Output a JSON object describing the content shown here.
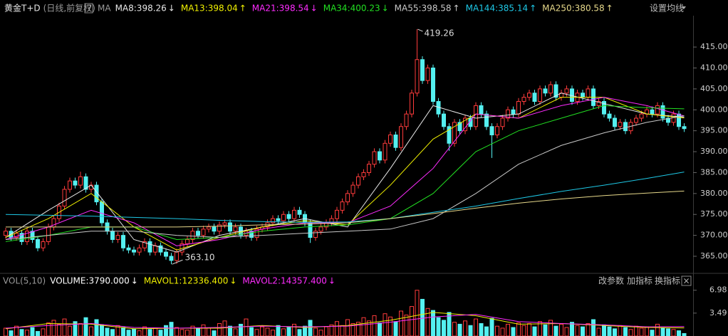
{
  "chart_data": {
    "type": "candlestick",
    "title": "黄金T+D",
    "subtitle": "(日线,前复权)",
    "help": "?",
    "ma_label": "MA",
    "ma_settings": "设置均线",
    "up_color": "#ff3b3b",
    "down_color": "#54f0f0",
    "ylim": [
      361.6,
      422.5
    ],
    "yticks": [
      {
        "value": 365,
        "label": "365.00"
      },
      {
        "value": 370,
        "label": "370.00"
      },
      {
        "value": 375,
        "label": "375.00"
      },
      {
        "value": 380,
        "label": "380.00"
      },
      {
        "value": 385,
        "label": "385.00"
      },
      {
        "value": 390,
        "label": "390.00"
      },
      {
        "value": 395,
        "label": "395.00"
      },
      {
        "value": 400,
        "label": "400.00"
      },
      {
        "value": 405,
        "label": "405.00"
      },
      {
        "value": 410,
        "label": "410.00"
      },
      {
        "value": 415,
        "label": "415.00"
      }
    ],
    "open": [
      370,
      371,
      369.5,
      370.5,
      368.5,
      371,
      369,
      367,
      368.5,
      372,
      374,
      377,
      381,
      383,
      382,
      384,
      381,
      382,
      378,
      373,
      371,
      369,
      370,
      367,
      366.5,
      366,
      367,
      368.5,
      366,
      367.5,
      366,
      365,
      364,
      366,
      368,
      369,
      371,
      370,
      371.5,
      372,
      371,
      372.5,
      373,
      371,
      372,
      370,
      371,
      369.5,
      371.5,
      372,
      373,
      374,
      373.5,
      375,
      374,
      376,
      375,
      373,
      369.5,
      371,
      372,
      373,
      374,
      376,
      378,
      380,
      382,
      384,
      385,
      387,
      390,
      388,
      392,
      394,
      391,
      396,
      399,
      404,
      412,
      407,
      410,
      402,
      399,
      396,
      392,
      397,
      395,
      398,
      396,
      401,
      399,
      396,
      394,
      396,
      398,
      400,
      399,
      402,
      403,
      404,
      402,
      405,
      404,
      406,
      403,
      404,
      405,
      402,
      404,
      403,
      405,
      401,
      402,
      399,
      398,
      396,
      397,
      395,
      397,
      398,
      399,
      400,
      399,
      401,
      398,
      397,
      399,
      396
    ],
    "high": [
      371.8,
      371.8,
      371.3,
      371.3,
      371.8,
      371.8,
      369.8,
      369.3,
      372.8,
      374.8,
      377.8,
      381.8,
      383.8,
      383.8,
      385.2,
      384.8,
      382.8,
      382.8,
      378.8,
      373.8,
      371.8,
      370.8,
      370.8,
      367.8,
      367.3,
      367.8,
      369.3,
      369.3,
      368.3,
      368.3,
      366.8,
      365.8,
      366.8,
      368.8,
      369.8,
      371.8,
      371.8,
      372.3,
      372.8,
      372.8,
      373.3,
      373.8,
      373.8,
      372.8,
      372.8,
      371.8,
      371.8,
      372.3,
      372.8,
      373.8,
      374.8,
      374.8,
      375.8,
      375.8,
      376.8,
      376.8,
      375.8,
      373.8,
      371.8,
      372.8,
      373.8,
      374.8,
      376.8,
      378.8,
      380.8,
      382.8,
      384.8,
      385.8,
      387.8,
      390.8,
      390.8,
      392.8,
      394.8,
      394.8,
      396.8,
      399.8,
      404.8,
      419.26,
      412.8,
      410.8,
      410.8,
      402.8,
      399.8,
      396.8,
      397.8,
      397.8,
      398.8,
      398.8,
      401.8,
      401.8,
      399.8,
      396.8,
      396.8,
      398.8,
      400.8,
      400.8,
      402.8,
      403.8,
      404.8,
      404.8,
      405.8,
      405.8,
      406.8,
      406.8,
      404.8,
      405.8,
      405.8,
      404.8,
      404.8,
      405.8,
      405.8,
      402.8,
      402.8,
      399.8,
      398.8,
      397.8,
      397.8,
      397.8,
      398.8,
      399.8,
      400.8,
      400.8,
      401.8,
      401.8,
      398.8,
      399.8,
      399.8,
      396.8
    ],
    "low": [
      369.2,
      368.7,
      368.7,
      367.7,
      367.7,
      368.2,
      366.2,
      366.2,
      367.7,
      371.2,
      373.2,
      376.2,
      380.2,
      381.2,
      381.2,
      380.2,
      380.2,
      377.2,
      372.2,
      370.2,
      368.2,
      368.2,
      366.2,
      365.7,
      365.2,
      365.2,
      366.2,
      365.2,
      365.2,
      365.2,
      364.2,
      363.1,
      363.2,
      365.2,
      367.2,
      368.2,
      369.2,
      369.2,
      370.7,
      370.2,
      370.2,
      371.7,
      370.2,
      370.2,
      369.2,
      369.2,
      368.7,
      368.7,
      370.7,
      371.2,
      372.2,
      372.7,
      372.7,
      373.2,
      373.2,
      374.2,
      372.2,
      368.2,
      368.7,
      370.2,
      371.2,
      372.2,
      373.2,
      375.2,
      377.2,
      379.2,
      381.2,
      383.2,
      384.2,
      386.2,
      387.2,
      387.2,
      391.2,
      390.2,
      390.2,
      395.2,
      398.2,
      403.2,
      406.2,
      406.2,
      401.2,
      398.2,
      395.2,
      390.2,
      391.2,
      394.2,
      394.2,
      395.2,
      395.2,
      398.2,
      395.2,
      388.5,
      393.2,
      395.2,
      397.2,
      398.2,
      398.2,
      401.2,
      402.2,
      401.2,
      401.2,
      403.2,
      403.2,
      402.2,
      402.2,
      403.2,
      401.2,
      401.2,
      402.2,
      402.2,
      400.2,
      400.2,
      398.2,
      397.2,
      395.2,
      395.2,
      394.2,
      394.2,
      396.2,
      397.2,
      398.2,
      398.2,
      398.2,
      397.2,
      396.2,
      396.2,
      395.2,
      394.7
    ],
    "close": [
      371,
      369.5,
      370.5,
      368.5,
      371,
      369,
      367,
      368.5,
      372,
      374,
      377,
      381,
      383,
      382,
      384,
      381,
      382,
      378,
      373,
      371,
      369,
      370,
      367,
      366.5,
      366,
      367,
      368.5,
      366,
      367.5,
      366,
      365,
      364,
      366,
      368,
      369,
      371,
      370,
      371.5,
      372,
      371,
      372.5,
      373,
      371,
      372,
      370,
      371,
      369.5,
      371.5,
      372,
      373,
      374,
      373.5,
      375,
      374,
      376,
      375,
      373,
      369.5,
      371,
      372,
      373,
      374,
      376,
      378,
      380,
      382,
      384,
      385,
      387,
      390,
      388,
      392,
      394,
      391,
      396,
      399,
      404,
      412,
      407,
      410,
      402,
      399,
      396,
      392,
      397,
      395,
      398,
      396,
      401,
      399,
      396,
      394,
      396,
      398,
      400,
      399,
      402,
      403,
      404,
      402,
      405,
      404,
      406,
      403,
      404,
      405,
      402,
      404,
      403,
      405,
      401,
      402,
      399,
      398,
      396,
      397,
      395,
      397,
      398,
      399,
      400,
      399,
      401,
      398,
      397,
      399,
      396,
      395.5
    ],
    "annotations": [
      {
        "value": 419.26,
        "label": "419.26"
      },
      {
        "value": 363.1,
        "label": "363.10"
      }
    ],
    "series": [
      {
        "legend": {
          "value": 398.26,
          "label": "MA8:398.26"
        },
        "arrow": "↓",
        "color": "#e8e8e8",
        "x": [
          0,
          8,
          16,
          24,
          32,
          40,
          48,
          56,
          64,
          72,
          80,
          88,
          96,
          104,
          112,
          120,
          127
        ],
        "values": [
          369.5,
          376,
          382,
          369,
          366,
          370,
          372,
          374,
          372,
          386,
          401,
          398,
          399,
          404,
          401.5,
          399,
          398.26
        ]
      },
      {
        "legend": {
          "value": 398.04,
          "label": "MA13:398.04"
        },
        "arrow": "↑",
        "color": "#f0f000",
        "x": [
          0,
          8,
          16,
          24,
          32,
          40,
          48,
          56,
          64,
          72,
          80,
          88,
          96,
          104,
          112,
          120,
          127
        ],
        "values": [
          369.5,
          374,
          380,
          372,
          366.5,
          369.5,
          372,
          373.5,
          372.5,
          382,
          393,
          399,
          398,
          403,
          403,
          399,
          398.04
        ]
      },
      {
        "legend": {
          "value": 398.54,
          "label": "MA21:398.54"
        },
        "arrow": "↓",
        "color": "#ff2cff",
        "x": [
          0,
          8,
          16,
          24,
          32,
          40,
          48,
          56,
          64,
          72,
          80,
          88,
          96,
          104,
          112,
          120,
          127
        ],
        "values": [
          369,
          372,
          376,
          373,
          367.5,
          369,
          371.5,
          373,
          373,
          377,
          386,
          399,
          398,
          401,
          403,
          401,
          398.54
        ]
      },
      {
        "legend": {
          "value": 400.23,
          "label": "MA34:400.23"
        },
        "arrow": "↓",
        "color": "#22e022",
        "x": [
          0,
          8,
          16,
          24,
          32,
          40,
          48,
          56,
          64,
          72,
          80,
          88,
          96,
          104,
          112,
          120,
          127
        ],
        "values": [
          368.5,
          370,
          372,
          372,
          369,
          369.5,
          371,
          372,
          372.5,
          374,
          380,
          390,
          395,
          398,
          401,
          400.5,
          400.23
        ]
      },
      {
        "legend": {
          "value": 398.58,
          "label": "MA55:398.58"
        },
        "arrow": "↑",
        "color": "#c8c8c8",
        "x": [
          0,
          8,
          16,
          24,
          32,
          40,
          48,
          56,
          64,
          72,
          80,
          88,
          96,
          104,
          112,
          120,
          127
        ],
        "values": [
          369,
          370,
          371,
          371,
          370,
          369.5,
          370,
          370.5,
          371,
          371.5,
          374,
          380,
          387,
          391.5,
          394.5,
          397,
          398.58
        ]
      },
      {
        "legend": {
          "value": 385.14,
          "label": "MA144:385.14"
        },
        "arrow": "↑",
        "color": "#1ec8e6",
        "x": [
          0,
          8,
          16,
          24,
          32,
          40,
          48,
          56,
          64,
          72,
          80,
          88,
          96,
          104,
          112,
          120,
          127
        ],
        "values": [
          375,
          374.8,
          374.6,
          374.3,
          374,
          373.6,
          373.3,
          373.1,
          373.2,
          374,
          375.5,
          377,
          378.8,
          380.5,
          382,
          383.6,
          385.14
        ]
      },
      {
        "legend": {
          "value": 380.58,
          "label": "MA250:380.58"
        },
        "arrow": "↑",
        "color": "#e6d88a",
        "x": [
          0,
          8,
          16,
          24,
          32,
          40,
          48,
          56,
          64,
          72,
          80,
          88,
          96,
          104,
          112,
          120,
          127
        ],
        "values": [
          372,
          372,
          372,
          372,
          372,
          372.2,
          372.5,
          372.7,
          373,
          374,
          375.2,
          376.5,
          377.7,
          378.7,
          379.5,
          380.1,
          380.58
        ]
      }
    ],
    "volume": {
      "label": "VOL(5,10)",
      "buttons": [
        "改参数",
        "加指标",
        "换指标"
      ],
      "close": "×",
      "ylim": [
        0,
        7.6
      ],
      "yticks": [
        3.49,
        6.98
      ],
      "legend": {
        "value": 3790,
        "label": "VOLUME:3790.000",
        "arrow": "↓",
        "color": "#ffffff"
      },
      "values": [
        1.2,
        0.8,
        1.5,
        1.0,
        0.9,
        1.3,
        0.7,
        1.1,
        2.0,
        2.4,
        1.8,
        2.6,
        1.5,
        2.2,
        1.9,
        2.8,
        1.4,
        2.5,
        1.7,
        1.2,
        1.0,
        1.6,
        1.3,
        0.9,
        1.1,
        0.8,
        1.4,
        1.0,
        1.2,
        0.9,
        1.6,
        2.1,
        1.3,
        1.0,
        0.9,
        1.5,
        1.1,
        1.7,
        1.2,
        0.8,
        1.9,
        2.3,
        1.5,
        1.1,
        1.8,
        2.6,
        1.3,
        1.0,
        1.4,
        1.2,
        0.9,
        1.6,
        1.1,
        1.3,
        1.8,
        1.0,
        1.5,
        2.4,
        1.2,
        0.9,
        1.4,
        1.7,
        2.2,
        1.6,
        2.5,
        1.9,
        2.1,
        2.8,
        2.3,
        3.1,
        2.0,
        3.4,
        2.9,
        2.2,
        3.8,
        3.2,
        4.5,
        6.98,
        5.6,
        4.2,
        3.9,
        2.8,
        2.4,
        3.6,
        2.1,
        1.8,
        2.3,
        1.6,
        2.6,
        1.9,
        1.4,
        2.7,
        1.5,
        1.2,
        1.8,
        1.3,
        2.0,
        1.6,
        1.9,
        1.4,
        2.2,
        1.7,
        2.4,
        1.5,
        1.8,
        1.3,
        2.1,
        1.6,
        1.4,
        1.9,
        2.5,
        1.2,
        1.7,
        1.4,
        1.1,
        1.6,
        1.3,
        1.0,
        1.5,
        1.2,
        1.4,
        0.9,
        1.8,
        1.2,
        1.1,
        1.0,
        0.8,
        0.379
      ],
      "series": [
        {
          "legend": {
            "value": 12336.4,
            "label": "MAVOL1:12336.400"
          },
          "arrow": "↓",
          "color": "#f0f000",
          "x": [
            0,
            8,
            16,
            24,
            32,
            40,
            48,
            56,
            64,
            72,
            80,
            88,
            96,
            104,
            112,
            120,
            127
          ],
          "values": [
            1.1,
            1.9,
            1.8,
            1.1,
            1.2,
            1.2,
            1.6,
            1.3,
            1.6,
            2.4,
            3.6,
            3.1,
            1.8,
            1.9,
            1.6,
            1.3,
            1.23
          ]
        },
        {
          "legend": {
            "value": 14357.4,
            "label": "MAVOL2:14357.400"
          },
          "arrow": "↓",
          "color": "#ff2cff",
          "x": [
            0,
            8,
            16,
            24,
            32,
            40,
            48,
            56,
            64,
            72,
            80,
            88,
            96,
            104,
            112,
            120,
            127
          ],
          "values": [
            1.2,
            1.6,
            1.9,
            1.3,
            1.2,
            1.3,
            1.5,
            1.4,
            1.5,
            2.1,
            2.9,
            3.3,
            2.2,
            1.9,
            1.7,
            1.4,
            1.44
          ]
        }
      ]
    }
  }
}
